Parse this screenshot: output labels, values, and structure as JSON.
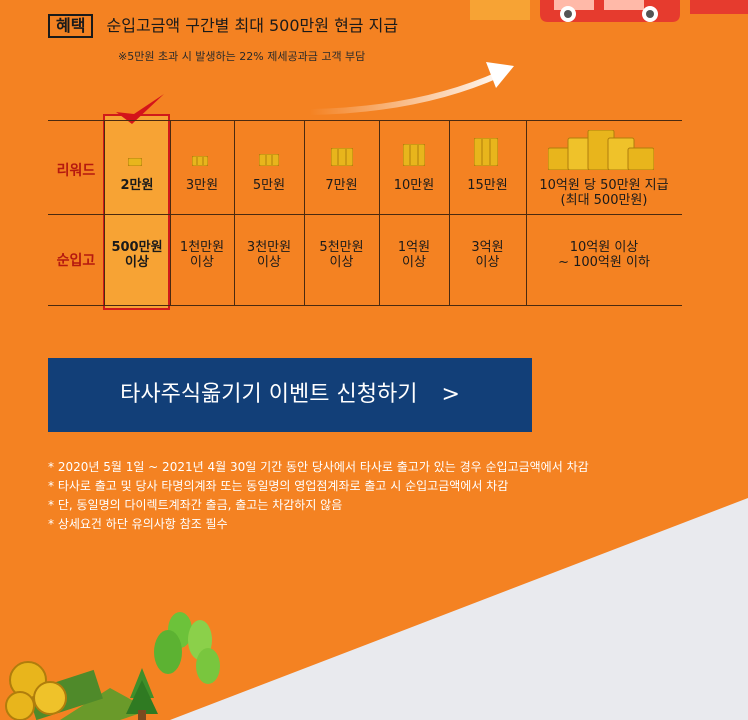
{
  "benefit": {
    "tag": "혜택",
    "title": "순입고금액 구간별 최대 500만원 현금 지급",
    "note": "※5만원 초과 시 발생하는 22% 제세공과금 고객 부담"
  },
  "table": {
    "row_labels": {
      "reward": "리워드",
      "deposit": "순입고"
    },
    "rewards": [
      "2만원",
      "3만원",
      "5만원",
      "7만원",
      "10만원",
      "15만원",
      {
        "line1": "10억원 당 50만원 지급",
        "line2": "(최대 500만원)"
      }
    ],
    "deposits": [
      {
        "line1": "500만원",
        "line2": "이상"
      },
      {
        "line1": "1천만원",
        "line2": "이상"
      },
      {
        "line1": "3천만원",
        "line2": "이상"
      },
      {
        "line1": "5천만원",
        "line2": "이상"
      },
      {
        "line1": "1억원",
        "line2": "이상"
      },
      {
        "line1": "3억원",
        "line2": "이상"
      },
      {
        "line1": "10억원 이상",
        "line2": "~ 100억원 이하"
      }
    ]
  },
  "cta": {
    "label": "타사주식옮기기 이벤트 신청하기",
    "chevron": ">"
  },
  "notes": [
    "* 2020년 5월 1일 ~ 2021년 4월 30일 기간 동안 당사에서 타사로 출고가 있는 경우 순입고금액에서 차감",
    "* 타사로 출고 및 당사 타명의계좌 또는 동일명의 영업점계좌로 출고 시 순입고금액에서 차감",
    "* 단, 동일명의 다이렉트계좌간 출금, 출고는 차감하지 않음",
    "* 상세요건 하단 유의사항 참조 필수"
  ],
  "icons": {
    "check": "checkmark-icon",
    "arrow": "curved-arrow-icon",
    "coin": "gold-coin-stack-icon",
    "truck": "truck-illustration",
    "trees": "trees-money-illustration"
  },
  "colors": {
    "background": "#f48222",
    "highlight": "#f7a334",
    "highlight_border": "#d01a1a",
    "row_label": "#b5190f",
    "cta_bg": "#123f78",
    "lower_bg": "#e9eaee"
  }
}
